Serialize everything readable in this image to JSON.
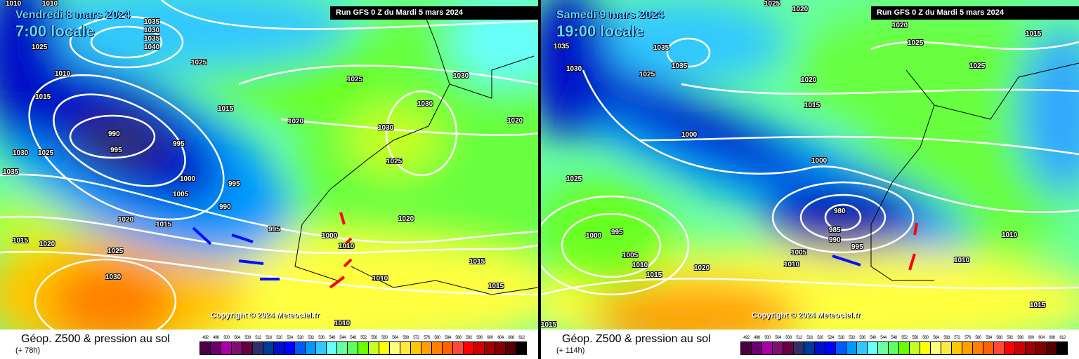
{
  "panels": [
    {
      "date": "Vendredi 8 mars 2024",
      "time": "7:00 locale",
      "run": "Run GFS 0 Z du Mardi 5 mars 2024",
      "copyright": "Copyright © 2024 Meteociel.fr",
      "title": "Géop. Z500 & pression au sol",
      "lead": "(+ 78h)",
      "labels": [
        "1010",
        "1010",
        "1035",
        "1030",
        "1035",
        "1040",
        "1025",
        "1010",
        "1015",
        "1025",
        "990",
        "995",
        "995",
        "1030",
        "1025",
        "1035",
        "1000",
        "1005",
        "995",
        "990",
        "1015",
        "1020",
        "1020",
        "1015",
        "1025",
        "1030",
        "1000",
        "1010",
        "1010",
        "1015",
        "1015",
        "1020",
        "1030",
        "1030",
        "1025",
        "1030",
        "1020",
        "1025",
        "995",
        "1010",
        "1020",
        "1015"
      ]
    },
    {
      "date": "Samedi 9 mars 2024",
      "time": "19:00 locale",
      "run": "Run GFS 0 Z du Mardi 5 mars 2024",
      "copyright": "Copyright © 2024 Meteociel.fr",
      "title": "Géop. Z500 & pression au sol",
      "lead": "(+ 114h)",
      "labels": [
        "1035",
        "1030",
        "1035",
        "1035",
        "1025",
        "1020",
        "1015",
        "1025",
        "1020",
        "1015",
        "1025",
        "1000",
        "1000",
        "980",
        "985",
        "990",
        "995",
        "1005",
        "1010",
        "1025",
        "1000",
        "995",
        "1005",
        "1010",
        "1015",
        "1020",
        "1010",
        "1015",
        "1015",
        "1010",
        "1020",
        "1025"
      ]
    }
  ],
  "legend": {
    "values": [
      "492",
      "496",
      "500",
      "504",
      "508",
      "512",
      "516",
      "520",
      "524",
      "528",
      "532",
      "536",
      "540",
      "544",
      "548",
      "552",
      "556",
      "560",
      "564",
      "568",
      "572",
      "576",
      "580",
      "584",
      "588",
      "592",
      "596",
      "600",
      "604",
      "608",
      "612"
    ],
    "colors": [
      "#4b0045",
      "#6a0070",
      "#a800a8",
      "#801070",
      "#680040",
      "#303068",
      "#003a98",
      "#0010c8",
      "#0000ff",
      "#0058ff",
      "#0098ff",
      "#30c8ff",
      "#68ffff",
      "#68ffa0",
      "#60ff60",
      "#68ff00",
      "#c8ff20",
      "#ffff00",
      "#ffff80",
      "#ffe840",
      "#ffc800",
      "#ffa000",
      "#ff8000",
      "#ff6000",
      "#ff4838",
      "#ff0000",
      "#d00000",
      "#a00000",
      "#800000",
      "#580000",
      "#000000"
    ]
  }
}
